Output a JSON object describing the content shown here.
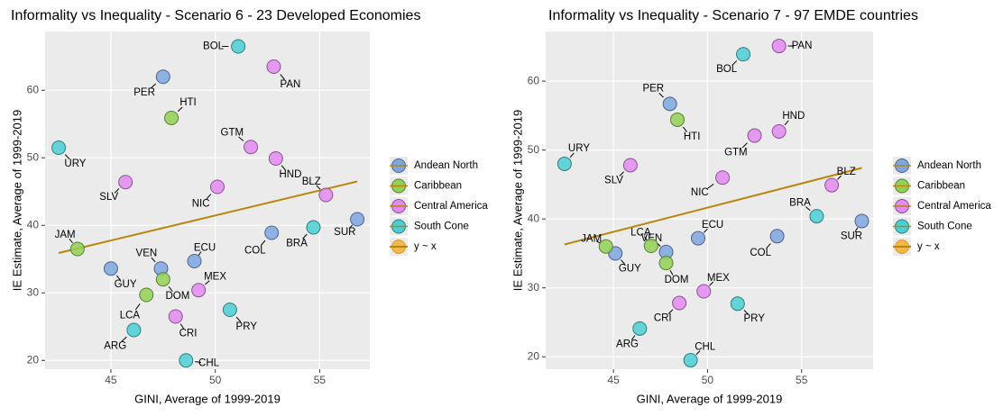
{
  "chart_data": [
    {
      "type": "scatter",
      "title": "Informality vs Inequality - Scenario 6 - 23 Developed Economies",
      "x_label": "GINI, Average of 1999-2019",
      "y_label": "IE Estimate, Average of 1999-2019",
      "xlim": [
        41.85,
        57.4
      ],
      "ylim": [
        18.7,
        68.7
      ],
      "xticks": [
        45,
        50,
        55
      ],
      "yticks": [
        20,
        30,
        40,
        50,
        60
      ],
      "grid": true,
      "series": [
        {
          "name": "Andean North",
          "color": "#7ea6e0",
          "labels": [
            "PER",
            "VEN",
            "ECU",
            "COL",
            "GUY",
            "SUR"
          ],
          "x": [
            47.5,
            47.4,
            49.0,
            52.7,
            45.0,
            56.8
          ],
          "y": [
            62,
            33.6,
            34.7,
            38.9,
            33.6,
            40.9
          ]
        },
        {
          "name": "Caribbean",
          "color": "#93d156",
          "labels": [
            "HTI",
            "JAM",
            "DOM",
            "LCA"
          ],
          "x": [
            47.9,
            43.4,
            47.5,
            46.7
          ],
          "y": [
            55.9,
            36.5,
            32,
            29.7
          ]
        },
        {
          "name": "Central America",
          "color": "#e389f0",
          "labels": [
            "PAN",
            "GTM",
            "HND",
            "SLV",
            "NIC",
            "BLZ",
            "MEX",
            "CRI"
          ],
          "x": [
            52.8,
            51.7,
            52.9,
            45.7,
            50.1,
            55.3,
            49.2,
            48.1
          ],
          "y": [
            63.5,
            51.6,
            49.9,
            46.4,
            45.7,
            44.5,
            30.4,
            26.5
          ]
        },
        {
          "name": "South Cone",
          "color": "#4ccfd4",
          "labels": [
            "BOL",
            "URY",
            "BRA",
            "ARG",
            "PRY",
            "CHL"
          ],
          "x": [
            51.1,
            42.5,
            54.7,
            46.1,
            50.7,
            48.6
          ],
          "y": [
            66.5,
            51.5,
            39.7,
            24.5,
            27.5,
            20
          ]
        }
      ],
      "trend_line": {
        "name": "y ~ x",
        "color": "#b8860b",
        "x": [
          42.5,
          56.8
        ],
        "y": [
          35.9,
          46.5
        ]
      }
    },
    {
      "type": "scatter",
      "title": "Informality vs Inequality -  Scenario 7 - 97 EMDE countries",
      "x_label": "GINI, Average of 1999-2019",
      "y_label": "IE Estimate, Average of 1999-2019",
      "xlim": [
        41.4,
        58.8
      ],
      "ylim": [
        18.2,
        67.2
      ],
      "xticks": [
        45,
        50,
        55
      ],
      "yticks": [
        20,
        30,
        40,
        50,
        60
      ],
      "grid": true,
      "series": [
        {
          "name": "Andean North",
          "color": "#7ea6e0",
          "labels": [
            "PER",
            "VEN",
            "ECU",
            "COL",
            "GUY",
            "SUR"
          ],
          "x": [
            48.0,
            47.8,
            49.5,
            53.7,
            45.1,
            58.2
          ],
          "y": [
            56.7,
            35.2,
            37.2,
            37.5,
            35,
            39.7
          ]
        },
        {
          "name": "Caribbean",
          "color": "#93d156",
          "labels": [
            "HTI",
            "JAM",
            "DOM",
            "LCA"
          ],
          "x": [
            48.4,
            44.6,
            47.8,
            47.0
          ],
          "y": [
            54.4,
            36.0,
            33.6,
            36.1
          ]
        },
        {
          "name": "Central America",
          "color": "#e389f0",
          "labels": [
            "PAN",
            "GTM",
            "HND",
            "SLV",
            "NIC",
            "BLZ",
            "MEX",
            "CRI"
          ],
          "x": [
            53.8,
            52.5,
            53.8,
            45.9,
            50.8,
            56.6,
            49.8,
            48.5
          ],
          "y": [
            65.1,
            52.1,
            52.7,
            47.8,
            46.0,
            44.9,
            29.5,
            27.8
          ]
        },
        {
          "name": "South Cone",
          "color": "#4ccfd4",
          "labels": [
            "BOL",
            "URY",
            "BRA",
            "ARG",
            "PRY",
            "CHL"
          ],
          "x": [
            51.9,
            42.4,
            55.8,
            46.4,
            51.6,
            49.1
          ],
          "y": [
            63.9,
            48,
            40.4,
            24.1,
            27.7,
            19.5
          ]
        }
      ],
      "trend_line": {
        "name": "y ~ x",
        "color": "#b8860b",
        "x": [
          42.4,
          58.2
        ],
        "y": [
          36.3,
          47.4
        ]
      }
    }
  ]
}
